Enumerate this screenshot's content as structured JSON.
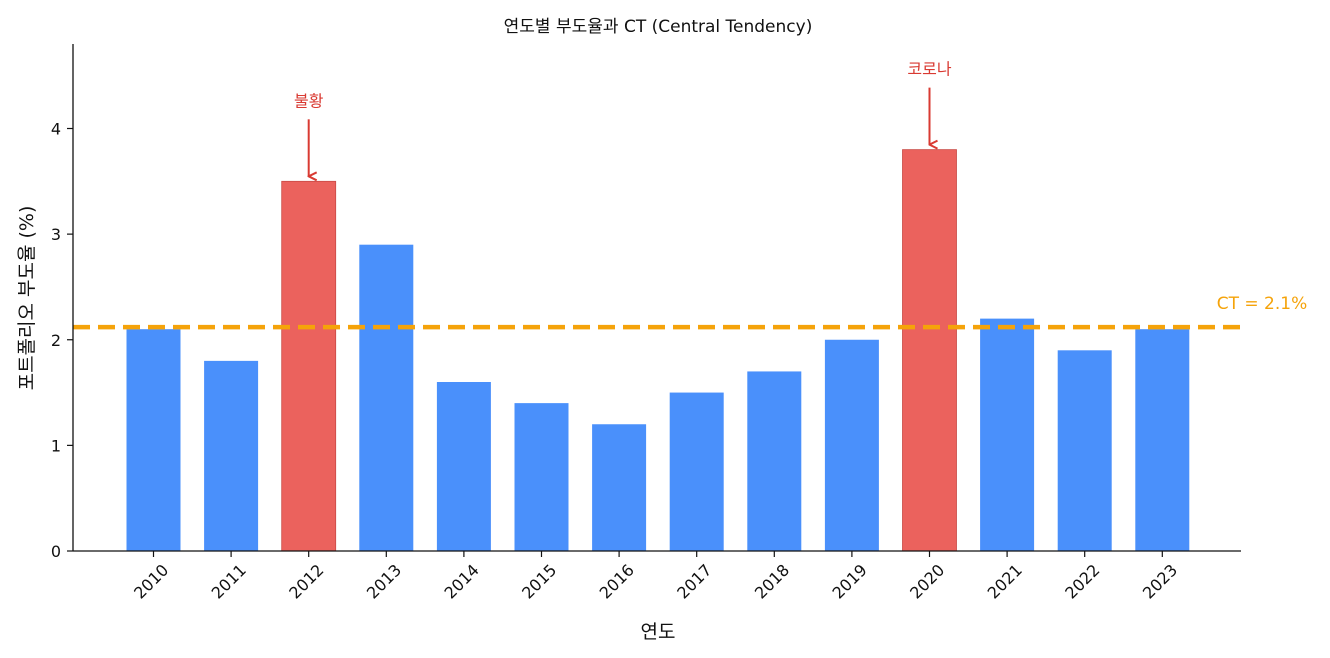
{
  "chart_data": {
    "type": "bar",
    "title": "연도별 부도율과 CT (Central Tendency)",
    "xlabel": "연도",
    "ylabel": "포트폴리오 부도율 (%)",
    "categories": [
      "2010",
      "2011",
      "2012",
      "2013",
      "2014",
      "2015",
      "2016",
      "2017",
      "2018",
      "2019",
      "2020",
      "2021",
      "2022",
      "2023"
    ],
    "values": [
      2.1,
      1.8,
      3.5,
      2.9,
      1.6,
      1.4,
      1.2,
      1.5,
      1.7,
      2.0,
      3.8,
      2.2,
      1.9,
      2.1
    ],
    "highlighted": [
      "2012",
      "2020"
    ],
    "ylim": [
      0,
      4.8
    ],
    "yticks": [
      "0",
      "1",
      "2",
      "3",
      "4"
    ],
    "grid": false,
    "colors": {
      "normal": "#4a90fb",
      "highlight": "#eb625d",
      "ct": "#f5a30a",
      "annotation": "#d93a32"
    },
    "ct_line": {
      "value": 2.12,
      "label": "CT = 2.1%"
    },
    "annotations": [
      {
        "category": "2012",
        "text": "불황"
      },
      {
        "category": "2020",
        "text": "코로나"
      }
    ]
  }
}
